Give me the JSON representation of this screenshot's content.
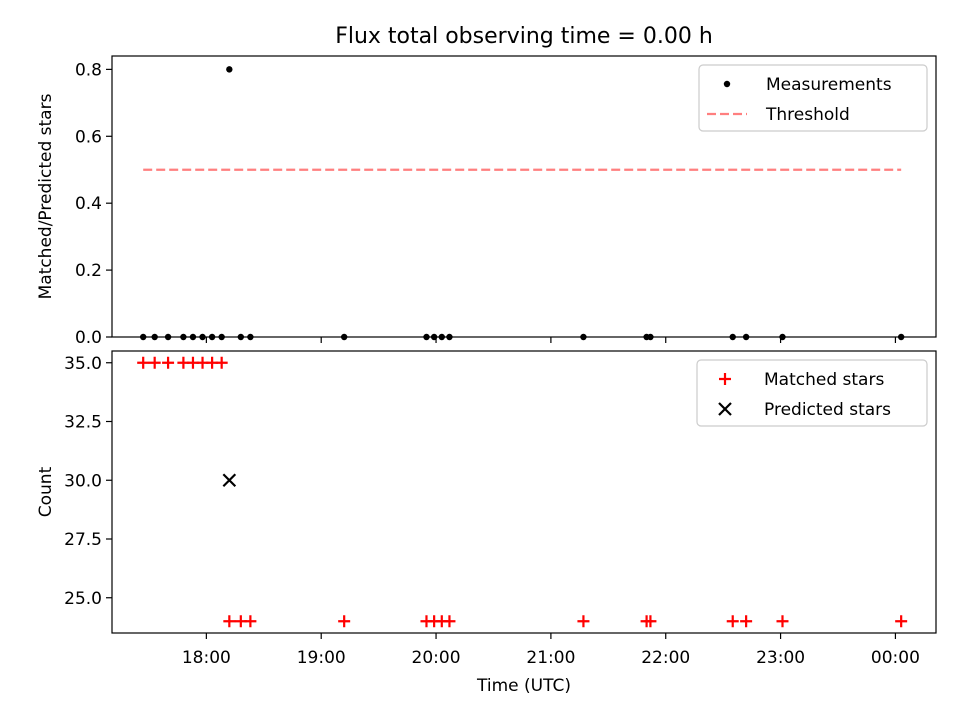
{
  "figure": {
    "title": "Flux total observing time = 0.00 h"
  },
  "chart_data": [
    {
      "type": "scatter",
      "ylabel": "Matched/Predicted stars",
      "xlabel": "",
      "ylim": [
        0.0,
        0.84
      ],
      "yticks": [
        0.0,
        0.2,
        0.4,
        0.6,
        0.8
      ],
      "ytick_labels": [
        "0.0",
        "0.2",
        "0.4",
        "0.6",
        "0.8"
      ],
      "x_axis": "time of day (UTC), shared with lower panel",
      "series": [
        {
          "name": "Measurements",
          "kind": "points",
          "marker": "dot",
          "color": "#000000",
          "points": [
            [
              "17:27",
              0.0
            ],
            [
              "17:33",
              0.0
            ],
            [
              "17:40",
              0.0
            ],
            [
              "17:48",
              0.0
            ],
            [
              "17:53",
              0.0
            ],
            [
              "17:58",
              0.0
            ],
            [
              "18:03",
              0.0
            ],
            [
              "18:08",
              0.0
            ],
            [
              "18:12",
              0.8
            ],
            [
              "18:18",
              0.0
            ],
            [
              "18:23",
              0.0
            ],
            [
              "19:12",
              0.0
            ],
            [
              "19:55",
              0.0
            ],
            [
              "19:59",
              0.0
            ],
            [
              "20:03",
              0.0
            ],
            [
              "20:07",
              0.0
            ],
            [
              "21:17",
              0.0
            ],
            [
              "21:50",
              0.0
            ],
            [
              "21:52",
              0.0
            ],
            [
              "22:35",
              0.0
            ],
            [
              "22:42",
              0.0
            ],
            [
              "23:01",
              0.0
            ],
            [
              "00:03",
              0.0
            ]
          ]
        },
        {
          "name": "Threshold",
          "kind": "line",
          "style": "dashed",
          "color": "#ff7f7f",
          "points": [
            [
              "17:27",
              0.5
            ],
            [
              "00:03",
              0.5
            ]
          ]
        }
      ],
      "legend": "top-right"
    },
    {
      "type": "scatter",
      "ylabel": "Count",
      "xlabel": "Time (UTC)",
      "ylim": [
        23.5,
        35.5
      ],
      "yticks": [
        25.0,
        27.5,
        30.0,
        32.5,
        35.0
      ],
      "ytick_labels": [
        "25.0",
        "27.5",
        "30.0",
        "32.5",
        "35.0"
      ],
      "xticks": [
        "18:00",
        "19:00",
        "20:00",
        "21:00",
        "22:00",
        "23:00",
        "00:00"
      ],
      "xtick_labels": [
        "18:00",
        "19:00",
        "20:00",
        "21:00",
        "22:00",
        "23:00",
        "00:00"
      ],
      "series": [
        {
          "name": "Matched stars",
          "kind": "points",
          "marker": "plus",
          "color": "#ff0000",
          "points": [
            [
              "17:27",
              35
            ],
            [
              "17:33",
              35
            ],
            [
              "17:40",
              35
            ],
            [
              "17:48",
              35
            ],
            [
              "17:53",
              35
            ],
            [
              "17:58",
              35
            ],
            [
              "18:03",
              35
            ],
            [
              "18:08",
              35
            ],
            [
              "18:12",
              24
            ],
            [
              "18:18",
              24
            ],
            [
              "18:23",
              24
            ],
            [
              "19:12",
              24
            ],
            [
              "19:55",
              24
            ],
            [
              "19:59",
              24
            ],
            [
              "20:03",
              24
            ],
            [
              "20:07",
              24
            ],
            [
              "21:17",
              24
            ],
            [
              "21:50",
              24
            ],
            [
              "21:52",
              24
            ],
            [
              "22:35",
              24
            ],
            [
              "22:42",
              24
            ],
            [
              "23:01",
              24
            ],
            [
              "00:03",
              24
            ]
          ]
        },
        {
          "name": "Predicted stars",
          "kind": "points",
          "marker": "x",
          "color": "#000000",
          "points": [
            [
              "18:12",
              30
            ]
          ]
        }
      ],
      "legend": "top-right"
    }
  ]
}
